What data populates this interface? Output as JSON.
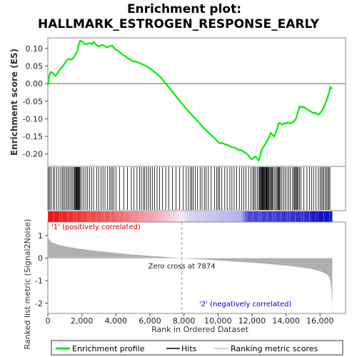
{
  "chart_data": {
    "type": "line",
    "title_line1": "Enrichment plot:",
    "title_line2": "HALLMARK_ESTROGEN_RESPONSE_EARLY",
    "es_panel": {
      "ylabel": "Enrichment score (ES)",
      "ylim": [
        -0.235,
        0.13
      ],
      "yticks": [
        0.1,
        0.05,
        0.0,
        -0.05,
        -0.1,
        -0.15,
        -0.2
      ],
      "ytick_labels": [
        "0.10",
        "0.05",
        "0.00",
        "-0.05",
        "-0.10",
        "-0.15",
        "-0.20"
      ],
      "series_name": "Enrichment profile",
      "color": "#00ee00",
      "x": [
        0,
        50,
        150,
        300,
        450,
        600,
        700,
        850,
        1000,
        1100,
        1250,
        1400,
        1550,
        1650,
        1750,
        1800,
        1900,
        2050,
        2200,
        2350,
        2500,
        2600,
        2700,
        2850,
        3000,
        3150,
        3300,
        3450,
        3600,
        3750,
        3850,
        3950,
        4100,
        4250,
        4400,
        4550,
        4700,
        4850,
        5000,
        5200,
        5400,
        5600,
        5800,
        6000,
        6200,
        6400,
        6600,
        6800,
        7000,
        7200,
        7400,
        7600,
        7800,
        8000,
        8300,
        8600,
        8900,
        9200,
        9500,
        9800,
        10000,
        10100,
        10200,
        10400,
        10600,
        10800,
        11000,
        11200,
        11400,
        11600,
        11800,
        11900,
        12000,
        12100,
        12200,
        12300,
        12400,
        12450,
        12500,
        12600,
        12700,
        12800,
        12900,
        13000,
        13100,
        13200,
        13300,
        13400,
        13500,
        13550,
        13600,
        13700,
        13800,
        13900,
        14000,
        14100,
        14200,
        14300,
        14400,
        14500,
        14600,
        14700,
        14800,
        14900,
        15000,
        15100,
        15200,
        15300,
        15400,
        15500,
        15600,
        15700,
        15800,
        15900,
        16000,
        16100,
        16200,
        16300,
        16400,
        16500,
        16600,
        16700
      ],
      "y": [
        -0.005,
        0.015,
        0.033,
        0.03,
        0.022,
        0.032,
        0.04,
        0.048,
        0.058,
        0.066,
        0.07,
        0.068,
        0.076,
        0.085,
        0.095,
        0.108,
        0.122,
        0.118,
        0.112,
        0.113,
        0.115,
        0.112,
        0.118,
        0.11,
        0.105,
        0.11,
        0.108,
        0.103,
        0.105,
        0.108,
        0.104,
        0.098,
        0.094,
        0.088,
        0.082,
        0.078,
        0.072,
        0.068,
        0.064,
        0.062,
        0.058,
        0.054,
        0.049,
        0.043,
        0.036,
        0.028,
        0.019,
        0.008,
        -0.004,
        -0.016,
        -0.028,
        -0.04,
        -0.052,
        -0.064,
        -0.08,
        -0.096,
        -0.112,
        -0.128,
        -0.142,
        -0.155,
        -0.165,
        -0.17,
        -0.168,
        -0.172,
        -0.175,
        -0.18,
        -0.182,
        -0.188,
        -0.19,
        -0.196,
        -0.204,
        -0.212,
        -0.215,
        -0.21,
        -0.207,
        -0.212,
        -0.218,
        -0.21,
        -0.2,
        -0.185,
        -0.178,
        -0.17,
        -0.162,
        -0.152,
        -0.14,
        -0.145,
        -0.15,
        -0.138,
        -0.125,
        -0.115,
        -0.112,
        -0.114,
        -0.116,
        -0.112,
        -0.114,
        -0.11,
        -0.113,
        -0.112,
        -0.11,
        -0.105,
        -0.098,
        -0.08,
        -0.065,
        -0.068,
        -0.065,
        -0.068,
        -0.072,
        -0.075,
        -0.078,
        -0.08,
        -0.084,
        -0.082,
        -0.086,
        -0.088,
        -0.084,
        -0.078,
        -0.068,
        -0.058,
        -0.045,
        -0.03,
        -0.01,
        -0.015
      ],
      "hits": [
        40,
        120,
        200,
        320,
        410,
        520,
        640,
        760,
        850,
        930,
        1010,
        1100,
        1180,
        1260,
        1350,
        1430,
        1510,
        1570,
        1610,
        1650,
        1690,
        1720,
        1760,
        1790,
        1830,
        1870,
        1920,
        2010,
        2120,
        2230,
        2340,
        2460,
        2570,
        2690,
        2880,
        2990,
        3130,
        3240,
        3360,
        3500,
        3620,
        3710,
        3790,
        3890,
        4010,
        4210,
        4460,
        4680,
        4910,
        5060,
        5240,
        5390,
        5500,
        5620,
        5700,
        5810,
        5920,
        6030,
        6140,
        6280,
        6420,
        6570,
        6730,
        6930,
        7110,
        7320,
        7530,
        7750,
        7960,
        8130,
        8260,
        8380,
        8460,
        8540,
        8660,
        8800,
        8950,
        9060,
        9200,
        9300,
        9430,
        9600,
        9800,
        9930,
        10020,
        10100,
        10230,
        10400,
        10540,
        10700,
        10820,
        10950,
        11100,
        11260,
        11400,
        11520,
        11650,
        11800,
        11940,
        12050,
        12120,
        12200,
        12300,
        12380,
        12440,
        12490,
        12520,
        12560,
        12600,
        12630,
        12660,
        12700,
        12740,
        12770,
        12810,
        12850,
        12880,
        12920,
        12960,
        13000,
        13050,
        13100,
        13150,
        13200,
        13260,
        13340,
        13420,
        13480,
        13530,
        13570,
        13620,
        13680,
        13760,
        13860,
        13960,
        14060,
        14160,
        14260,
        14380,
        14460,
        14510,
        14560,
        14610,
        14660,
        14720,
        14790,
        14880,
        15050,
        15230,
        15380,
        15500,
        15620,
        15760,
        15900,
        16000,
        16080,
        16150,
        16220,
        16300,
        16380,
        16450,
        16520,
        16580
      ]
    },
    "rank_panel": {
      "ylabel": "Ranked list metric (Signal2Noise)",
      "xlabel": "Rank in Ordered Dataset",
      "ylim": [
        -2.45,
        1.6
      ],
      "yticks": [
        1,
        0,
        -1,
        -2
      ],
      "ytick_labels": [
        "1",
        "0",
        "-1",
        "-2"
      ],
      "color": "#b0b0b0",
      "x": [
        0,
        50,
        200,
        500,
        1000,
        2000,
        3000,
        4000,
        5000,
        6000,
        7000,
        7874,
        9000,
        10000,
        11000,
        12000,
        13000,
        14000,
        15000,
        15500,
        15900,
        16200,
        16400,
        16550,
        16620,
        16680,
        16720
      ],
      "y": [
        0.98,
        0.85,
        0.72,
        0.62,
        0.52,
        0.4,
        0.31,
        0.23,
        0.16,
        0.1,
        0.05,
        0.0,
        -0.05,
        -0.1,
        -0.15,
        -0.2,
        -0.26,
        -0.33,
        -0.42,
        -0.48,
        -0.56,
        -0.64,
        -0.72,
        -0.85,
        -1.05,
        -1.55,
        -2.3
      ],
      "zero_cross_label": "Zero cross at 7874",
      "zero_cross_x": 7874,
      "pos_label": "'1' (positively correlated)",
      "neg_label": "'2' (negatively correlated)"
    },
    "xlim": [
      0,
      17500
    ],
    "xticks": [
      0,
      2000,
      4000,
      6000,
      8000,
      10000,
      12000,
      14000,
      16000
    ],
    "xtick_labels": [
      "0",
      "2,000",
      "4,000",
      "6,000",
      "8,000",
      "10,000",
      "12,000",
      "14,000",
      "16,000"
    ],
    "n_genes": 16720,
    "legend": [
      {
        "label": "Enrichment profile",
        "color": "#00ee00"
      },
      {
        "label": "Hits",
        "color": "#000000"
      },
      {
        "label": "Ranking metric scores",
        "color": "#c0c0c0"
      }
    ]
  }
}
